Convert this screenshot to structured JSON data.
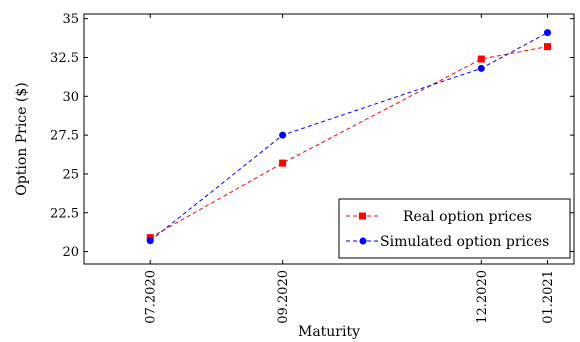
{
  "chart_data": {
    "type": "line",
    "title": "",
    "xlabel": "Maturity",
    "ylabel": "Option Price ($)",
    "categories": [
      "07.2020",
      "09.2020",
      "12.2020",
      "01.2021"
    ],
    "x": [
      7,
      9,
      12,
      13
    ],
    "yticks": [
      "20",
      "22.5",
      "25",
      "27.5",
      "30",
      "32.5",
      "35"
    ],
    "ylim": [
      19.2,
      35.3
    ],
    "xlim": [
      6.0,
      13.4
    ],
    "grid": false,
    "legend_position": "bottom-right",
    "series": [
      {
        "name": "Real option prices",
        "values": [
          20.9,
          25.7,
          32.4,
          33.2
        ],
        "color": "#ff0000",
        "marker": "square",
        "line_style": "dashed"
      },
      {
        "name": "Simulated option prices",
        "values": [
          20.7,
          27.5,
          31.8,
          34.1
        ],
        "color": "#0000ff",
        "marker": "circle",
        "line_style": "dashed"
      }
    ]
  }
}
